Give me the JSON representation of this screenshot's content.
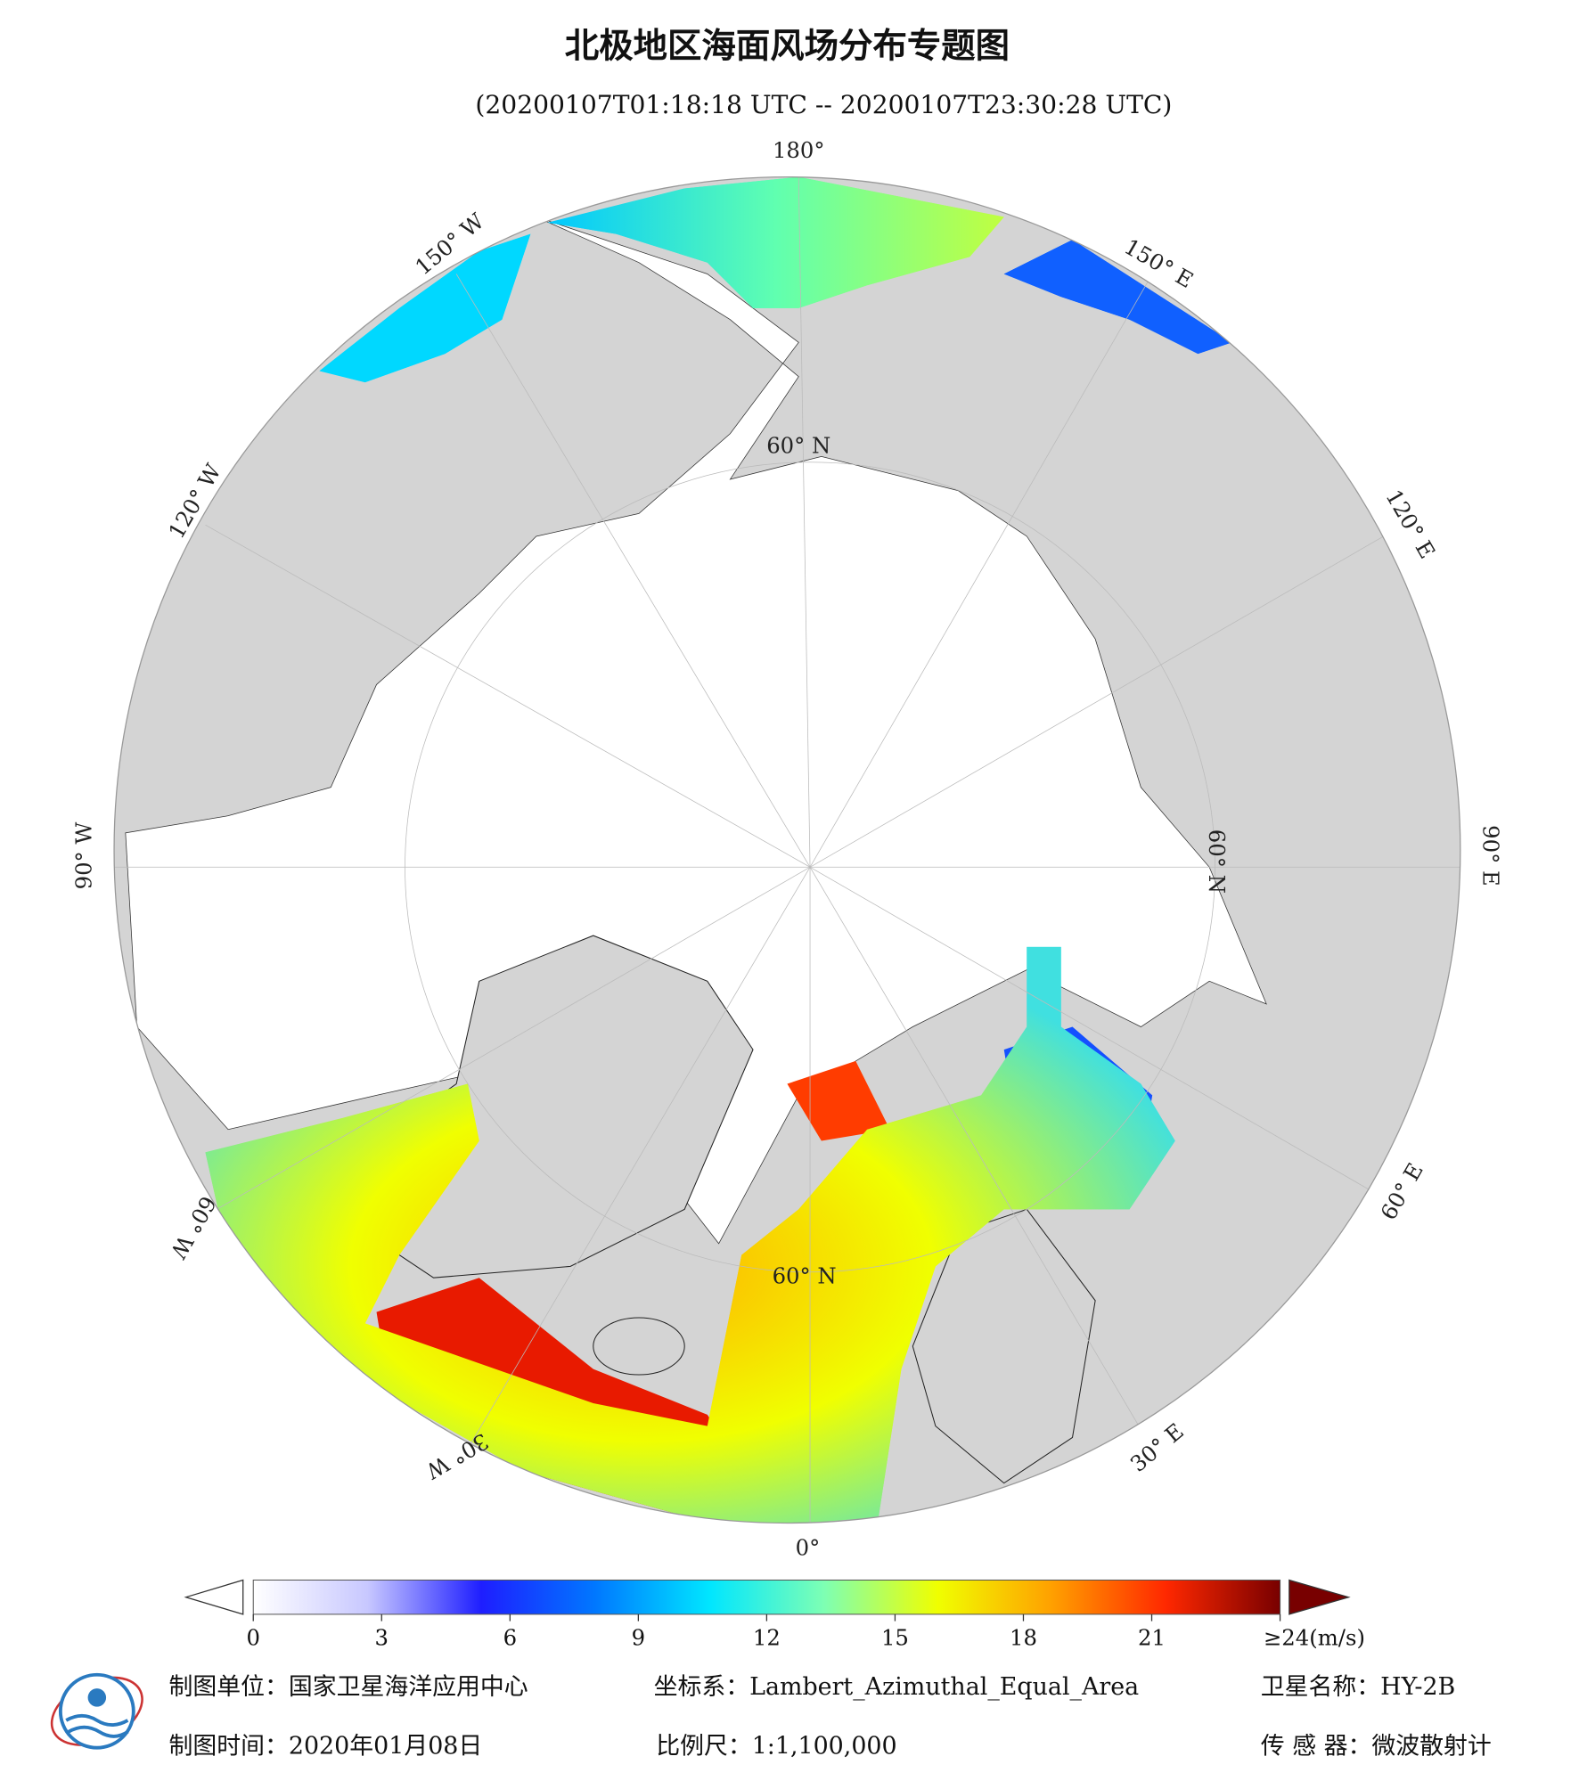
{
  "header": {
    "title": "北极地区海面风场分布专题图",
    "subtitle": "(20200107T01:18:18 UTC -- 20200107T23:30:28 UTC)"
  },
  "map": {
    "graticule_labels": [
      "180°",
      "150° W",
      "120° W",
      "90° W",
      "60° W",
      "30° W",
      "0°",
      "30° E",
      "60° E",
      "90° E",
      "120° E",
      "150° E",
      "60° N",
      "60° N",
      "60° N"
    ],
    "colorbar": {
      "lim": [
        0,
        24
      ],
      "ticks": [
        0,
        3,
        6,
        9,
        12,
        15,
        18,
        21,
        {
          "value": 24,
          "label": "≥24(m/s)"
        }
      ],
      "colors": [
        "#ffffff",
        "#c8c8ff",
        "#1e1eff",
        "#0078ff",
        "#00e6ff",
        "#7dffb4",
        "#f0ff00",
        "#ffa000",
        "#ff2800",
        "#780000"
      ]
    }
  },
  "footer": {
    "producer": "制图单位：国家卫星海洋应用中心",
    "date": "制图时间：2020年01月08日",
    "projection": "坐标系：Lambert_Azimuthal_Equal_Area",
    "scale": "比例尺：1:1,100,000",
    "satellite": "卫星名称：HY-2B",
    "sensor": "传 感 器：微波散射计"
  }
}
